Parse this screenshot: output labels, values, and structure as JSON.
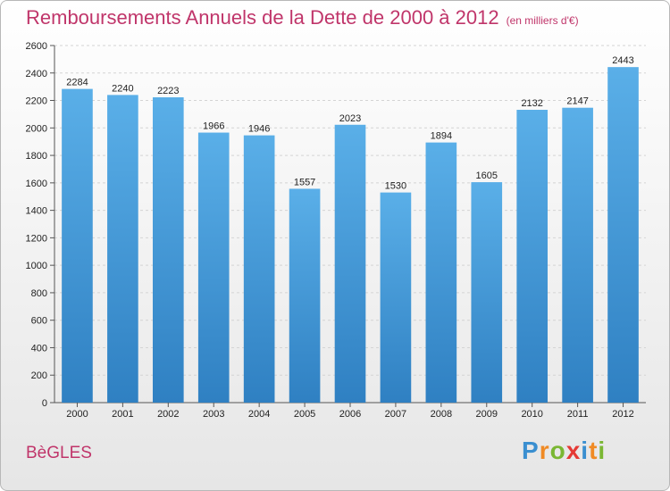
{
  "header": {
    "title": "Remboursements Annuels de la Dette de 2000 à 2012",
    "subtitle": "(en milliers d'€)"
  },
  "footer": {
    "city": "BèGLES",
    "brand_letters": [
      {
        "ch": "P",
        "color": "#3a8fd0"
      },
      {
        "ch": "r",
        "color": "#f08a24"
      },
      {
        "ch": "o",
        "color": "#7ab733"
      },
      {
        "ch": "x",
        "color": "#e53935"
      },
      {
        "ch": "i",
        "color": "#3a8fd0"
      },
      {
        "ch": "t",
        "color": "#f08a24"
      },
      {
        "ch": "i",
        "color": "#7ab733"
      }
    ]
  },
  "chart_data": {
    "type": "bar",
    "title": "Remboursements Annuels de la Dette de 2000 à 2012",
    "subtitle": "(en milliers d'€)",
    "categories": [
      "2000",
      "2001",
      "2002",
      "2003",
      "2004",
      "2005",
      "2006",
      "2007",
      "2008",
      "2009",
      "2010",
      "2011",
      "2012"
    ],
    "values": [
      2284,
      2240,
      2223,
      1966,
      1946,
      1557,
      2023,
      1530,
      1894,
      1605,
      2132,
      2147,
      2443
    ],
    "ylim": [
      0,
      2600
    ],
    "yticks": [
      0,
      200,
      400,
      600,
      800,
      1000,
      1200,
      1400,
      1600,
      1800,
      2000,
      2200,
      2400,
      2600
    ],
    "grid": true,
    "bar_color_top": "#5aafe8",
    "bar_color_bottom": "#2f80c2"
  }
}
